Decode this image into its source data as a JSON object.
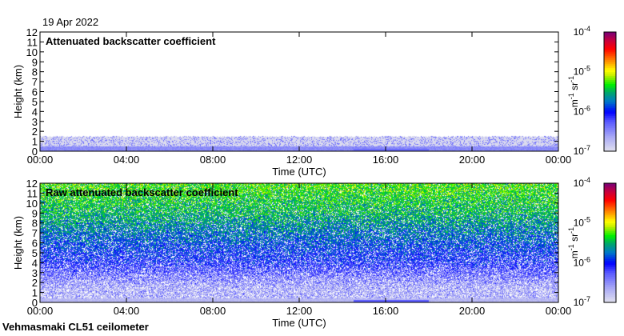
{
  "header": {
    "date": "19 Apr 2022"
  },
  "footer": {
    "instrument": "Vehmasmaki CL51 ceilometer"
  },
  "chart_data": [
    {
      "type": "heatmap",
      "title": "Attenuated backscatter coefficient",
      "xlabel": "Time (UTC)",
      "ylabel": "Height (km)",
      "xticks": [
        "00:00",
        "04:00",
        "08:00",
        "12:00",
        "16:00",
        "20:00",
        "00:00"
      ],
      "yticks": [
        "0",
        "1",
        "2",
        "3",
        "4",
        "5",
        "6",
        "7",
        "8",
        "9",
        "10",
        "11",
        "12"
      ],
      "xlim_hours": [
        0,
        24
      ],
      "ylim_km": [
        0,
        12
      ],
      "colorbar": {
        "label": "m-1 sr-1",
        "ticks": [
          "10-7",
          "10-6",
          "10-5",
          "10-4"
        ],
        "range_log10": [
          -7,
          -4
        ]
      },
      "signal_top_km": 1.6
    },
    {
      "type": "heatmap",
      "title": "Raw attenuated backscatter coefficient",
      "xlabel": "Time (UTC)",
      "ylabel": "Height (km)",
      "xticks": [
        "00:00",
        "04:00",
        "08:00",
        "12:00",
        "16:00",
        "20:00",
        "00:00"
      ],
      "yticks": [
        "0",
        "1",
        "2",
        "3",
        "4",
        "5",
        "6",
        "7",
        "8",
        "9",
        "10",
        "11",
        "12"
      ],
      "xlim_hours": [
        0,
        24
      ],
      "ylim_km": [
        0,
        12
      ],
      "colorbar": {
        "label": "m-1 sr-1",
        "ticks": [
          "10-7",
          "10-6",
          "10-5",
          "10-4"
        ],
        "range_log10": [
          -7,
          -4
        ]
      }
    }
  ]
}
